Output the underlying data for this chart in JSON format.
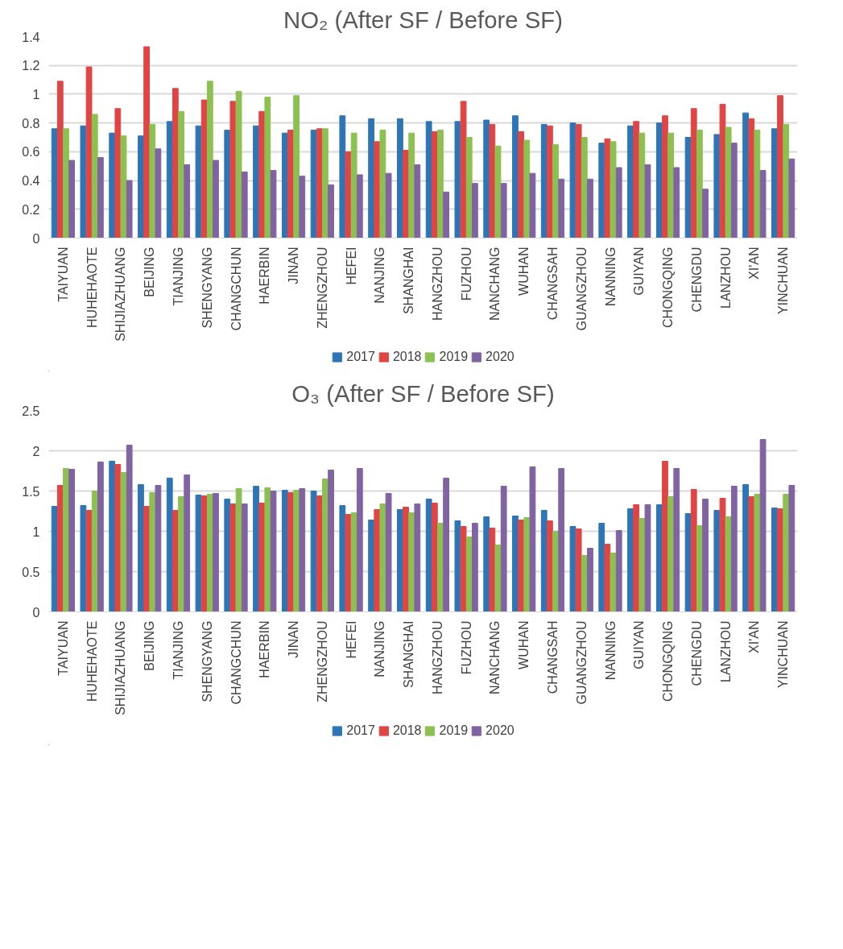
{
  "chart_data": [
    {
      "type": "bar",
      "title": "NO₂ (After SF / Before SF)",
      "categories": [
        "TAIYUAN",
        "HUHEHAOTE",
        "SHIJIAZHUANG",
        "BEIJING",
        "TIANJING",
        "SHENGYANG",
        "CHANGCHUN",
        "HAERBIN",
        "JINAN",
        "ZHENGZHOU",
        "HEFEI",
        "NANJING",
        "SHANGHAI",
        "HANGZHOU",
        "FUZHOU",
        "NANCHANG",
        "WUHAN",
        "CHANGSAH",
        "GUANGZHOU",
        "NANNING",
        "GUIYAN",
        "CHONGQING",
        "CHENGDU",
        "LANZHOU",
        "XI'AN",
        "YINCHUAN"
      ],
      "series": [
        {
          "name": "2017",
          "color": "#2e75b6",
          "values": [
            0.76,
            0.78,
            0.73,
            0.71,
            0.81,
            0.78,
            0.75,
            0.78,
            0.73,
            0.75,
            0.85,
            0.83,
            0.83,
            0.81,
            0.81,
            0.82,
            0.85,
            0.79,
            0.8,
            0.66,
            0.78,
            0.8,
            0.7,
            0.72,
            0.87,
            0.76
          ]
        },
        {
          "name": "2018",
          "color": "#e04545",
          "values": [
            1.09,
            1.19,
            0.9,
            1.33,
            1.04,
            0.96,
            0.95,
            0.88,
            0.75,
            0.76,
            0.6,
            0.67,
            0.61,
            0.74,
            0.95,
            0.79,
            0.74,
            0.78,
            0.79,
            0.69,
            0.81,
            0.85,
            0.9,
            0.93,
            0.83,
            0.99
          ]
        },
        {
          "name": "2019",
          "color": "#8cc152",
          "values": [
            0.76,
            0.86,
            0.71,
            0.79,
            0.88,
            1.09,
            1.02,
            0.98,
            0.99,
            0.76,
            0.73,
            0.75,
            0.73,
            0.75,
            0.7,
            0.64,
            0.68,
            0.65,
            0.7,
            0.67,
            0.73,
            0.73,
            0.75,
            0.77,
            0.75,
            0.79
          ]
        },
        {
          "name": "2020",
          "color": "#8064a2",
          "values": [
            0.54,
            0.56,
            0.4,
            0.62,
            0.51,
            0.54,
            0.46,
            0.47,
            0.43,
            0.37,
            0.44,
            0.45,
            0.51,
            0.32,
            0.38,
            0.38,
            0.45,
            0.41,
            0.41,
            0.49,
            0.51,
            0.49,
            0.34,
            0.66,
            0.47,
            0.55
          ]
        }
      ],
      "ylim": [
        0,
        1.4
      ],
      "yticks": [
        0,
        0.2,
        0.4,
        0.6,
        0.8,
        1,
        1.2,
        1.4
      ],
      "grid": "y",
      "legend": "bottom"
    },
    {
      "type": "bar",
      "title": "O₃ (After SF / Before SF)",
      "categories": [
        "TAIYUAN",
        "HUHEHAOTE",
        "SHIJIAZHUANG",
        "BEIJING",
        "TIANJING",
        "SHENGYANG",
        "CHANGCHUN",
        "HAERBIN",
        "JINAN",
        "ZHENGZHOU",
        "HEFEI",
        "NANJING",
        "SHANGHAI",
        "HANGZHOU",
        "FUZHOU",
        "NANCHANG",
        "WUHAN",
        "CHANGSAH",
        "GUANGZHOU",
        "NANNING",
        "GUIYAN",
        "CHONGQING",
        "CHENGDU",
        "LANZHOU",
        "XI'AN",
        "YINCHUAN"
      ],
      "series": [
        {
          "name": "2017",
          "color": "#2e75b6",
          "values": [
            1.31,
            1.32,
            1.87,
            1.58,
            1.66,
            1.45,
            1.4,
            1.56,
            1.51,
            1.5,
            1.32,
            1.14,
            1.27,
            1.4,
            1.13,
            1.18,
            1.19,
            1.26,
            1.06,
            1.1,
            1.28,
            1.33,
            1.22,
            1.26,
            1.58,
            1.29
          ]
        },
        {
          "name": "2018",
          "color": "#e04545",
          "values": [
            1.57,
            1.26,
            1.83,
            1.31,
            1.26,
            1.44,
            1.34,
            1.35,
            1.48,
            1.44,
            1.21,
            1.27,
            1.3,
            1.35,
            1.06,
            1.04,
            1.14,
            1.13,
            1.03,
            0.84,
            1.33,
            1.87,
            1.52,
            1.41,
            1.43,
            1.28
          ]
        },
        {
          "name": "2019",
          "color": "#8cc152",
          "values": [
            1.78,
            1.5,
            1.73,
            1.48,
            1.43,
            1.46,
            1.53,
            1.54,
            1.51,
            1.65,
            1.23,
            1.34,
            1.23,
            1.1,
            0.93,
            0.83,
            1.17,
            1.0,
            0.7,
            0.73,
            1.16,
            1.43,
            1.07,
            1.18,
            1.46,
            1.46
          ]
        },
        {
          "name": "2020",
          "color": "#8064a2",
          "values": [
            1.77,
            1.86,
            2.07,
            1.57,
            1.7,
            1.47,
            1.34,
            1.5,
            1.53,
            1.76,
            1.78,
            1.47,
            1.34,
            1.66,
            1.1,
            1.56,
            1.8,
            1.78,
            0.79,
            1.01,
            1.33,
            1.78,
            1.4,
            1.56,
            2.14,
            1.57
          ]
        }
      ],
      "ylim": [
        0,
        2.5
      ],
      "yticks": [
        0,
        0.5,
        1,
        1.5,
        2,
        2.5
      ],
      "grid": "y",
      "legend": "bottom"
    }
  ]
}
